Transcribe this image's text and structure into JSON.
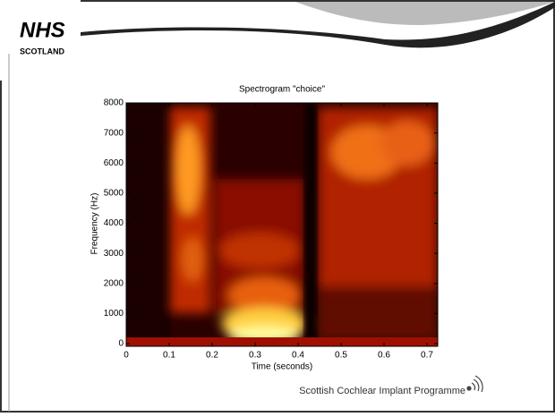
{
  "slide": {
    "logo": "NHS",
    "logo_sub": "SCOTLAND",
    "footer": "Scottish Cochlear Implant Programme"
  },
  "chart_data": {
    "type": "spectrogram",
    "title": "Spectrogram \"choice\"",
    "x_label": "Time (seconds)",
    "y_label": "Frequency (Hz)",
    "xlim": [
      0,
      0.725
    ],
    "xticks": [
      0,
      0.1,
      0.2,
      0.3,
      0.4,
      0.5,
      0.6,
      0.7
    ],
    "ylim": [
      0,
      8000
    ],
    "yticks": [
      0,
      1000,
      2000,
      3000,
      4000,
      5000,
      6000,
      7000,
      8000
    ]
  }
}
